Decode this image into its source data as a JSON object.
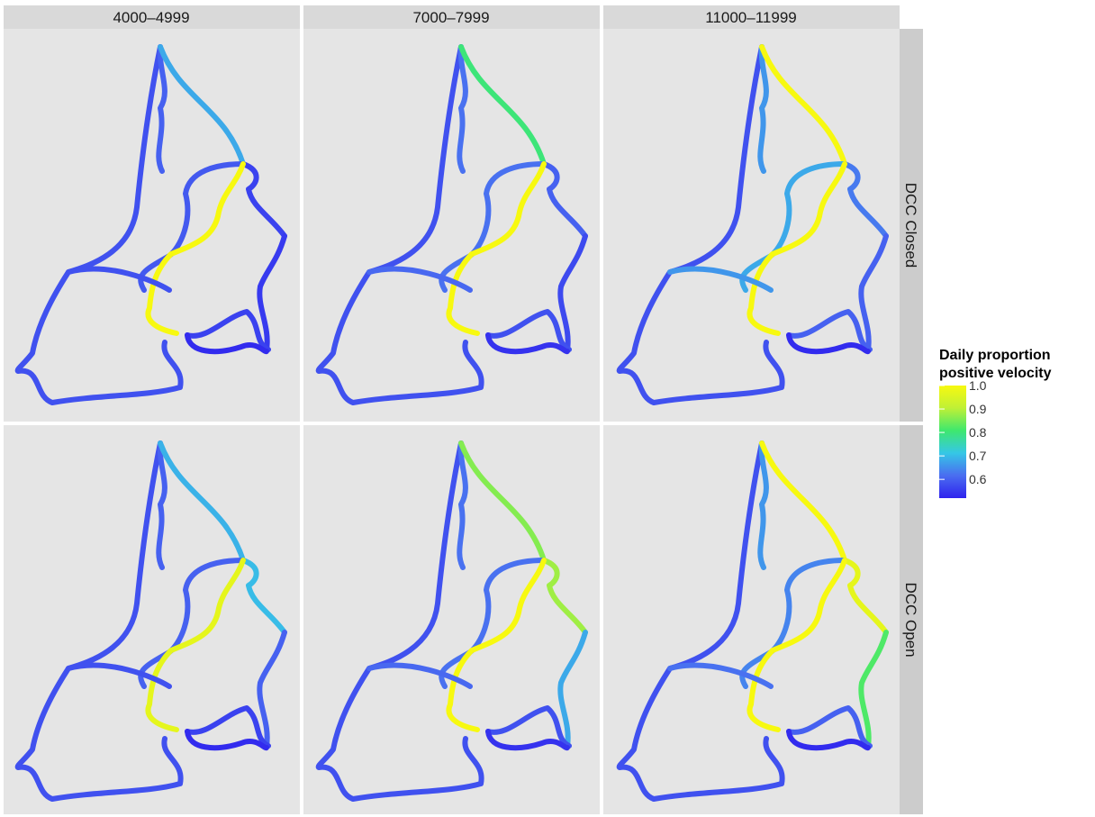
{
  "chart_data": {
    "type": "faceted-map",
    "facet_columns": [
      "4000–4999",
      "7000–7999",
      "11000–11999"
    ],
    "facet_rows": [
      "DCC Closed",
      "DCC Open"
    ],
    "legend": {
      "title_line1": "Daily proportion",
      "title_line2": "positive velocity",
      "ticks": [
        "1.0",
        "0.9",
        "0.8",
        "0.7",
        "0.6"
      ],
      "tick_values": [
        1.0,
        0.9,
        0.8,
        0.7,
        0.6
      ],
      "range": [
        0.52,
        1.0
      ],
      "placement": "right",
      "palette": [
        "#2f23ee",
        "#4a6df0",
        "#35c7e6",
        "#3ee86e",
        "#bff036",
        "#f7f910"
      ]
    },
    "segments": [
      "west_loop",
      "northwest_arm",
      "upper_channel",
      "east_lobe_north",
      "central_arc",
      "inner_channel",
      "east_lobe_south",
      "south_loop",
      "southeast_link",
      "west_cross"
    ],
    "panels": [
      {
        "row": 0,
        "col": 0,
        "values": {
          "west_loop": 0.58,
          "northwest_arm": 0.6,
          "upper_channel": 0.68,
          "east_lobe_north": 0.56,
          "central_arc": 0.59,
          "inner_channel": 1.0,
          "east_lobe_south": 0.55,
          "south_loop": 0.56,
          "southeast_link": 0.53,
          "west_cross": 0.58
        }
      },
      {
        "row": 0,
        "col": 1,
        "values": {
          "west_loop": 0.58,
          "northwest_arm": 0.62,
          "upper_channel": 0.8,
          "east_lobe_north": 0.6,
          "central_arc": 0.62,
          "inner_channel": 1.0,
          "east_lobe_south": 0.57,
          "south_loop": 0.58,
          "southeast_link": 0.54,
          "west_cross": 0.61
        }
      },
      {
        "row": 0,
        "col": 2,
        "values": {
          "west_loop": 0.58,
          "northwest_arm": 0.66,
          "upper_channel": 1.0,
          "east_lobe_north": 0.63,
          "central_arc": 0.68,
          "inner_channel": 1.0,
          "east_lobe_south": 0.6,
          "south_loop": 0.6,
          "southeast_link": 0.53,
          "west_cross": 0.66
        }
      },
      {
        "row": 1,
        "col": 0,
        "values": {
          "west_loop": 0.58,
          "northwest_arm": 0.6,
          "upper_channel": 0.69,
          "east_lobe_north": 0.7,
          "central_arc": 0.6,
          "inner_channel": 0.97,
          "east_lobe_south": 0.6,
          "south_loop": 0.56,
          "southeast_link": 0.53,
          "west_cross": 0.58
        }
      },
      {
        "row": 1,
        "col": 1,
        "values": {
          "west_loop": 0.58,
          "northwest_arm": 0.62,
          "upper_channel": 0.86,
          "east_lobe_north": 0.88,
          "central_arc": 0.62,
          "inner_channel": 1.0,
          "east_lobe_south": 0.68,
          "south_loop": 0.58,
          "southeast_link": 0.54,
          "west_cross": 0.61
        }
      },
      {
        "row": 1,
        "col": 2,
        "values": {
          "west_loop": 0.58,
          "northwest_arm": 0.66,
          "upper_channel": 1.0,
          "east_lobe_north": 0.97,
          "central_arc": 0.64,
          "inner_channel": 1.0,
          "east_lobe_south": 0.82,
          "south_loop": 0.6,
          "southeast_link": 0.53,
          "west_cross": 0.62
        }
      }
    ]
  }
}
